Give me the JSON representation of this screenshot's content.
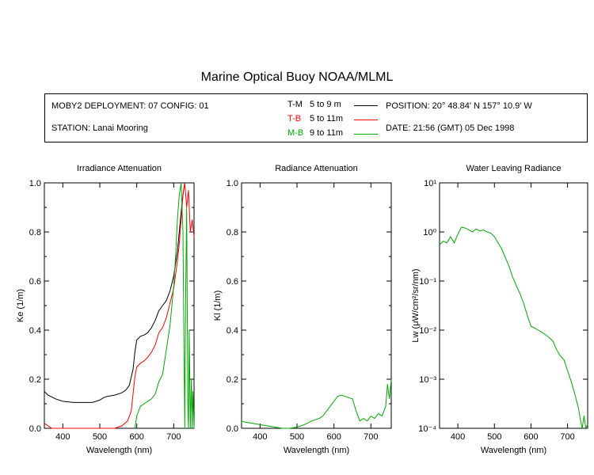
{
  "title": "Marine Optical Buoy NOAA/MLML",
  "info": {
    "deployment": "MOBY2 DEPLOYMENT: 07 CONFIG: 01",
    "station": "STATION: Lanai Mooring",
    "position": "POSITION: 20° 48.84' N   157° 10.9' W",
    "date": "DATE: 21:56 (GMT) 05 Dec 1998"
  },
  "legend": [
    {
      "code": "T-M",
      "range": "5 to 9  m",
      "color": "#000000"
    },
    {
      "code": "T-B",
      "range": "5 to 11m",
      "color": "#ff0000"
    },
    {
      "code": "M-B",
      "range": "9 to 11m",
      "color": "#00aa00"
    }
  ],
  "chart_data": [
    {
      "type": "line",
      "title": "Irradiance Attenuation",
      "xlabel": "Wavelength (nm)",
      "ylabel": "Ke  (1/m)",
      "xlim": [
        350,
        755
      ],
      "ylim": [
        0,
        1.0
      ],
      "xticks": [
        400,
        500,
        600,
        700
      ],
      "yticks": [
        "0.0",
        "0.2",
        "0.4",
        "0.6",
        "0.8",
        "1.0"
      ],
      "yscale": "linear",
      "series": [
        {
          "name": "T-M",
          "color": "#000000",
          "x": [
            350,
            360,
            380,
            400,
            430,
            460,
            480,
            500,
            510,
            520,
            540,
            560,
            570,
            580,
            590,
            595,
            600,
            610,
            620,
            630,
            640,
            650,
            660,
            670,
            680,
            690,
            700,
            710,
            720,
            725,
            730
          ],
          "y": [
            0.15,
            0.135,
            0.12,
            0.11,
            0.105,
            0.105,
            0.105,
            0.115,
            0.125,
            0.13,
            0.135,
            0.145,
            0.155,
            0.175,
            0.24,
            0.31,
            0.36,
            0.375,
            0.38,
            0.39,
            0.41,
            0.44,
            0.48,
            0.5,
            0.52,
            0.56,
            0.62,
            0.72,
            0.88,
            0.95,
            1.0
          ]
        },
        {
          "name": "T-B",
          "color": "#ff0000",
          "x": [
            350,
            360,
            370,
            375,
            540,
            560,
            575,
            585,
            590,
            595,
            600,
            610,
            620,
            630,
            640,
            650,
            660,
            670,
            680,
            690,
            700,
            710,
            715,
            720,
            725,
            730,
            735,
            740,
            745,
            750,
            755
          ],
          "y": [
            0.02,
            0.01,
            0.0,
            0.0,
            0.0,
            0.01,
            0.03,
            0.07,
            0.14,
            0.21,
            0.25,
            0.265,
            0.275,
            0.29,
            0.31,
            0.34,
            0.39,
            0.41,
            0.45,
            0.51,
            0.57,
            0.68,
            0.75,
            0.85,
            0.95,
            1.0,
            0.9,
            0.97,
            0.8,
            0.85,
            0.78
          ]
        },
        {
          "name": "M-B",
          "color": "#00aa00",
          "x": [
            595,
            600,
            605,
            610,
            620,
            630,
            640,
            650,
            660,
            670,
            680,
            690,
            700,
            705,
            710,
            715,
            720,
            725,
            728,
            730,
            732,
            735,
            738,
            740,
            742,
            745,
            748,
            750,
            752,
            755
          ],
          "y": [
            0.0,
            0.05,
            0.07,
            0.09,
            0.1,
            0.11,
            0.12,
            0.14,
            0.19,
            0.22,
            0.32,
            0.42,
            0.58,
            0.7,
            0.85,
            0.95,
            1.0,
            0.8,
            0.3,
            0.0,
            0.5,
            0.9,
            0.1,
            0.0,
            0.4,
            0.0,
            0.2,
            0.0,
            0.15,
            0.0
          ]
        }
      ]
    },
    {
      "type": "line",
      "title": "Radiance Attenuation",
      "xlabel": "Wavelength (nm)",
      "ylabel": "Kl  (1/m)",
      "xlim": [
        350,
        755
      ],
      "ylim": [
        0,
        1.0
      ],
      "xticks": [
        400,
        500,
        600,
        700
      ],
      "yticks": [
        "0.0",
        "0.2",
        "0.4",
        "0.6",
        "0.8",
        "1.0"
      ],
      "yscale": "linear",
      "series": [
        {
          "name": "M-B",
          "color": "#00aa00",
          "x": [
            350,
            360,
            380,
            400,
            420,
            440,
            460,
            480,
            500,
            520,
            540,
            560,
            570,
            580,
            590,
            600,
            610,
            620,
            630,
            640,
            650,
            660,
            670,
            680,
            690,
            700,
            710,
            720,
            730,
            740,
            745,
            750,
            755
          ],
          "y": [
            0.03,
            0.025,
            0.02,
            0.015,
            0.01,
            0.005,
            0.0,
            0.0,
            0.005,
            0.015,
            0.03,
            0.04,
            0.05,
            0.07,
            0.09,
            0.11,
            0.13,
            0.135,
            0.13,
            0.125,
            0.12,
            0.07,
            0.03,
            0.04,
            0.03,
            0.05,
            0.04,
            0.06,
            0.05,
            0.09,
            0.18,
            0.12,
            0.2
          ]
        }
      ]
    },
    {
      "type": "line",
      "title": "Water Leaving Radiance",
      "xlabel": "Wavelength (nm)",
      "ylabel": "Lw  (μW/cm²/sr/nm)",
      "xlim": [
        350,
        755
      ],
      "ylim": [
        0.0001,
        10
      ],
      "xticks": [
        400,
        500,
        600,
        700
      ],
      "yticks": [
        "10⁻⁴",
        "10⁻³",
        "10⁻²",
        "10⁻¹",
        "10⁰",
        "10¹"
      ],
      "yscale": "log",
      "series": [
        {
          "name": "M-B",
          "color": "#00aa00",
          "x": [
            350,
            360,
            370,
            380,
            390,
            400,
            410,
            420,
            430,
            440,
            450,
            460,
            470,
            480,
            490,
            500,
            510,
            520,
            530,
            540,
            550,
            560,
            570,
            580,
            590,
            600,
            610,
            620,
            630,
            640,
            650,
            660,
            670,
            680,
            690,
            700,
            710,
            720,
            730,
            735,
            740,
            745,
            750,
            755
          ],
          "y": [
            0.55,
            0.65,
            0.6,
            0.8,
            0.6,
            0.9,
            1.25,
            1.2,
            1.1,
            1.0,
            1.15,
            1.05,
            1.1,
            1.0,
            0.95,
            0.8,
            0.6,
            0.45,
            0.3,
            0.2,
            0.12,
            0.08,
            0.055,
            0.035,
            0.02,
            0.012,
            0.011,
            0.01,
            0.009,
            0.008,
            0.007,
            0.006,
            0.004,
            0.003,
            0.0025,
            0.0015,
            0.0009,
            0.0005,
            0.00025,
            0.00015,
            0.0001,
            0.00018,
            0.0001,
            0.00012
          ]
        }
      ]
    }
  ]
}
